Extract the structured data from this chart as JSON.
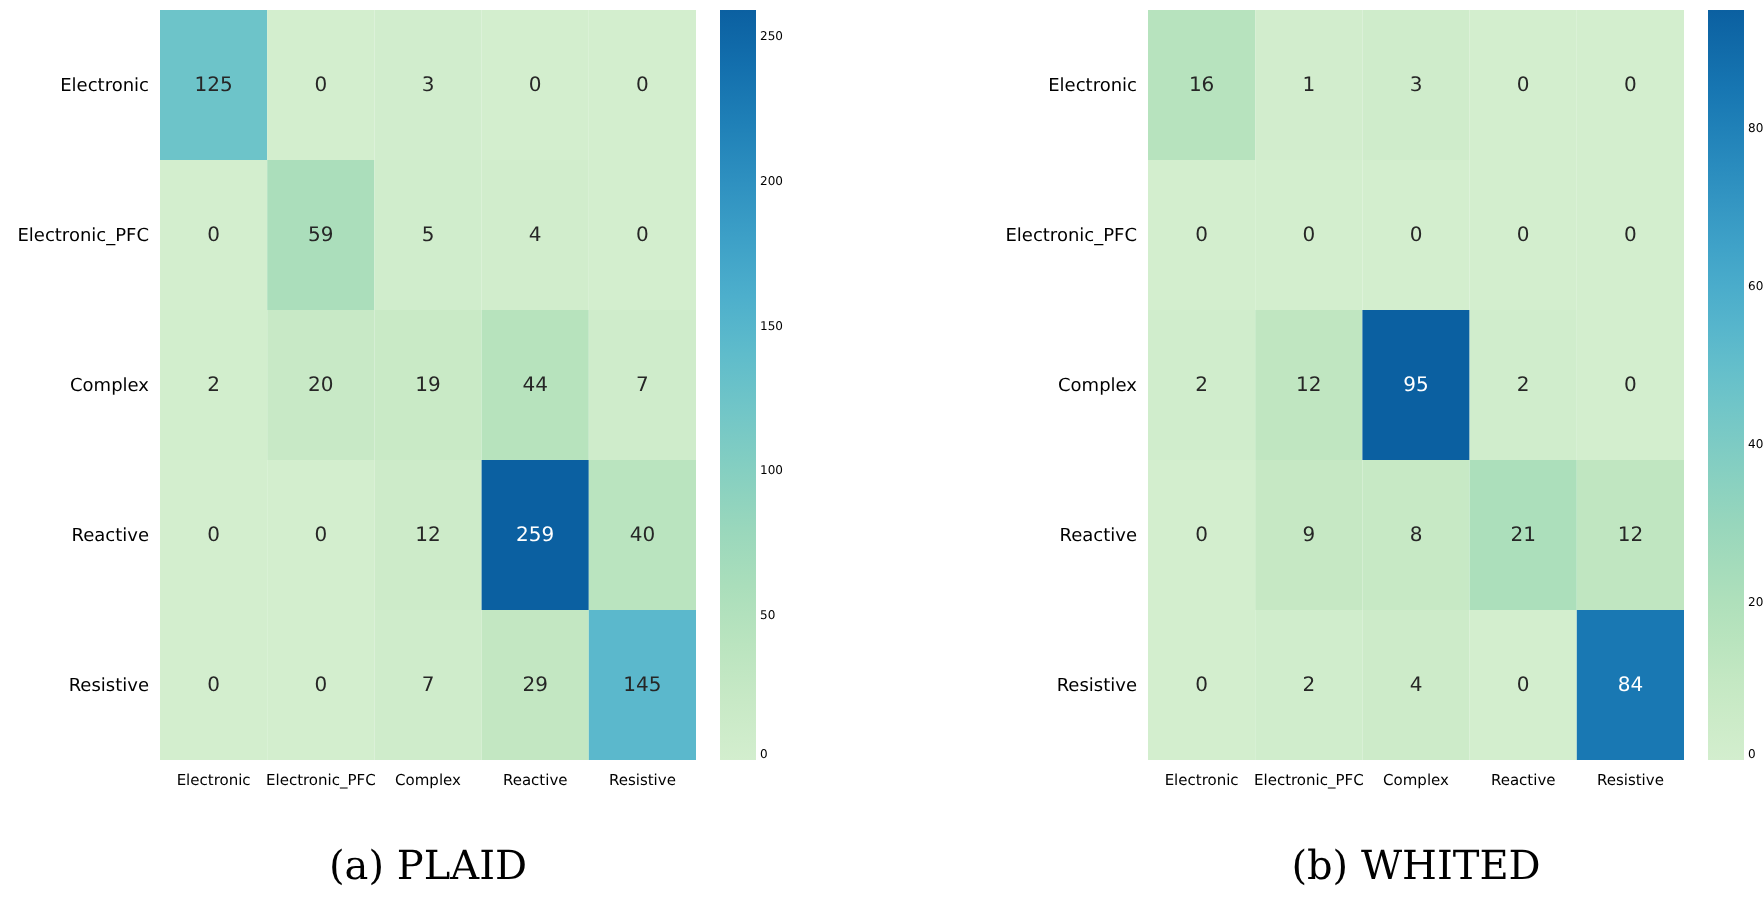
{
  "chart_data": [
    {
      "type": "heatmap",
      "title": "(a) PLAID",
      "categories": [
        "Electronic",
        "Electronic_PFC",
        "Complex",
        "Reactive",
        "Resistive"
      ],
      "y_categories": [
        "Electronic",
        "Electronic_PFC",
        "Complex",
        "Reactive",
        "Resistive"
      ],
      "cells": [
        [
          125,
          0,
          3,
          0,
          0
        ],
        [
          0,
          59,
          5,
          4,
          0
        ],
        [
          2,
          20,
          19,
          44,
          7
        ],
        [
          0,
          0,
          12,
          259,
          40
        ],
        [
          0,
          0,
          7,
          29,
          145
        ]
      ],
      "clim": [
        0,
        259
      ],
      "cticks": [
        0,
        50,
        100,
        150,
        200,
        250
      ],
      "data_labels": true
    },
    {
      "type": "heatmap",
      "title": "(b) WHITED",
      "categories": [
        "Electronic",
        "Electronic_PFC",
        "Complex",
        "Reactive",
        "Resistive"
      ],
      "y_categories": [
        "Electronic",
        "Electronic_PFC",
        "Complex",
        "Reactive",
        "Resistive"
      ],
      "cells": [
        [
          16,
          1,
          3,
          0,
          0
        ],
        [
          0,
          0,
          0,
          0,
          0
        ],
        [
          2,
          12,
          95,
          2,
          0
        ],
        [
          0,
          9,
          8,
          21,
          12
        ],
        [
          0,
          2,
          4,
          0,
          84
        ]
      ],
      "clim": [
        0,
        95
      ],
      "cticks": [
        0,
        20,
        40,
        60,
        80
      ],
      "data_labels": true
    }
  ]
}
